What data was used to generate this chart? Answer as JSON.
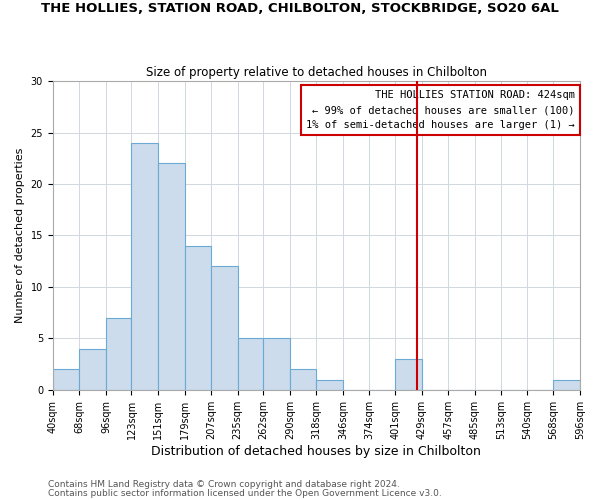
{
  "title": "THE HOLLIES, STATION ROAD, CHILBOLTON, STOCKBRIDGE, SO20 6AL",
  "subtitle": "Size of property relative to detached houses in Chilbolton",
  "xlabel": "Distribution of detached houses by size in Chilbolton",
  "ylabel": "Number of detached properties",
  "bar_edges": [
    40,
    68,
    96,
    123,
    151,
    179,
    207,
    235,
    262,
    290,
    318,
    346,
    374,
    401,
    429,
    457,
    485,
    513,
    540,
    568,
    596
  ],
  "bar_heights": [
    2,
    4,
    7,
    24,
    22,
    14,
    12,
    5,
    5,
    2,
    1,
    0,
    0,
    3,
    0,
    0,
    0,
    0,
    0,
    1
  ],
  "bar_color": "#ccdcec",
  "bar_edgecolor": "#6aaad4",
  "red_line_x": 424,
  "annotation_title": "THE HOLLIES STATION ROAD: 424sqm",
  "annotation_line1": "← 99% of detached houses are smaller (100)",
  "annotation_line2": "1% of semi-detached houses are larger (1) →",
  "annotation_box_edgecolor": "#cc0000",
  "annotation_text_color": "#000000",
  "red_line_color": "#cc0000",
  "ylim": [
    0,
    30
  ],
  "yticks": [
    0,
    5,
    10,
    15,
    20,
    25,
    30
  ],
  "footer1": "Contains HM Land Registry data © Crown copyright and database right 2024.",
  "footer2": "Contains public sector information licensed under the Open Government Licence v3.0.",
  "background_color": "#ffffff",
  "grid_color": "#d0d8e0",
  "title_fontsize": 9.5,
  "subtitle_fontsize": 8.5,
  "ylabel_fontsize": 8,
  "xlabel_fontsize": 9,
  "tick_fontsize": 7,
  "footer_fontsize": 6.5
}
